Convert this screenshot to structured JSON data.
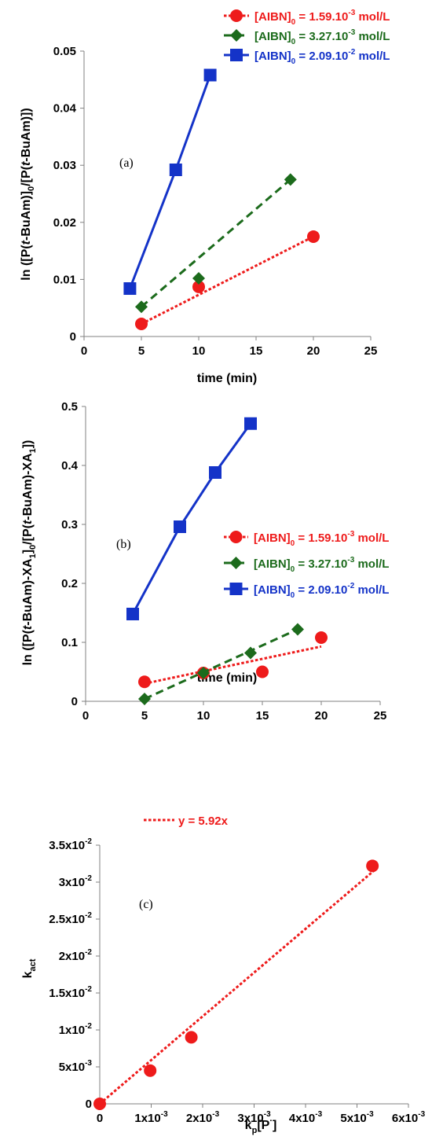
{
  "colors": {
    "red": "#ee1b1b",
    "green": "#1c6b1c",
    "blue": "#1433c8"
  },
  "chart_data": [
    {
      "type": "line",
      "panel_label": "(a)",
      "xlabel": "time (min)",
      "ylabel": "ln ([P(t-BuAm)]0/[P(t-BuAm)])",
      "xlim": [
        0,
        25
      ],
      "ylim": [
        0,
        0.05
      ],
      "x_ticks": [
        "0",
        "5",
        "10",
        "15",
        "20",
        "25"
      ],
      "y_ticks": [
        "0",
        "0.01",
        "0.02",
        "0.03",
        "0.04",
        "0.05"
      ],
      "legend_position": "top-right",
      "series": [
        {
          "name": "[AIBN]0 = 1.59.10-3 mol/L",
          "marker": "circle",
          "line": "dotted",
          "color": "#ee1b1b",
          "x": [
            5,
            10,
            20
          ],
          "y": [
            0.0022,
            0.0087,
            0.0175
          ]
        },
        {
          "name": "[AIBN]0 = 3.27.10-3 mol/L",
          "marker": "diamond",
          "line": "dashed",
          "color": "#1c6b1c",
          "x": [
            5,
            10,
            18
          ],
          "y": [
            0.0052,
            0.0102,
            0.0275
          ]
        },
        {
          "name": "[AIBN]0 = 2.09.10-2 mol/L",
          "marker": "square",
          "line": "solid",
          "color": "#1433c8",
          "x": [
            4,
            8,
            11
          ],
          "y": [
            0.0084,
            0.0292,
            0.0458
          ]
        }
      ]
    },
    {
      "type": "line",
      "panel_label": "(b)",
      "xlabel": "time (min)",
      "ylabel": "ln ([P(t-BuAm)-XA1]0/[P(t-BuAm)-XA1])",
      "xlim": [
        0,
        25
      ],
      "ylim": [
        0,
        0.5
      ],
      "x_ticks": [
        "0",
        "5",
        "10",
        "15",
        "20",
        "25"
      ],
      "y_ticks": [
        "0",
        "0.1",
        "0.2",
        "0.3",
        "0.4",
        "0.5"
      ],
      "legend_position": "middle-right",
      "series": [
        {
          "name": "[AIBN]0 = 1.59.10-3 mol/L",
          "marker": "circle",
          "line": "dotted",
          "color": "#ee1b1b",
          "x": [
            5,
            10,
            15,
            20
          ],
          "y": [
            0.033,
            0.048,
            0.05,
            0.108
          ],
          "fit": {
            "x": [
              5,
              20
            ],
            "y": [
              0.03,
              0.093
            ]
          }
        },
        {
          "name": "[AIBN]0 = 3.27.10-3 mol/L",
          "marker": "diamond",
          "line": "dashed",
          "color": "#1c6b1c",
          "x": [
            5,
            10,
            14,
            18
          ],
          "y": [
            0.004,
            0.048,
            0.082,
            0.122
          ]
        },
        {
          "name": "[AIBN]0 = 2.09.10-2 mol/L",
          "marker": "square",
          "line": "solid",
          "color": "#1433c8",
          "x": [
            4,
            8,
            11,
            14
          ],
          "y": [
            0.148,
            0.296,
            0.388,
            0.471
          ]
        }
      ]
    },
    {
      "type": "scatter",
      "panel_label": "(c)",
      "xlabel": "kp[P·]",
      "ylabel": "kact",
      "xlim": [
        0,
        0.006
      ],
      "ylim": [
        0,
        0.035
      ],
      "x_ticks": [
        "0",
        "1x10-3",
        "2x10-3",
        "3x10-3",
        "4x10-3",
        "5x10-3",
        "6x10-3"
      ],
      "y_ticks": [
        "0",
        "5x10-3",
        "1x10-2",
        "1.5x10-2",
        "2x10-2",
        "2.5x10-2",
        "3x10-2",
        "3.5x10-2"
      ],
      "legend_position": "top-left",
      "series": [
        {
          "name": "y = 5.92x",
          "marker": "circle",
          "line": "dotted",
          "color": "#ee1b1b",
          "x": [
            0,
            0.00098,
            0.00178,
            0.0053
          ],
          "y": [
            0,
            0.0045,
            0.009,
            0.0322
          ],
          "fit": {
            "slope": 5.92,
            "x": [
              0,
              0.0054
            ]
          }
        }
      ]
    }
  ]
}
